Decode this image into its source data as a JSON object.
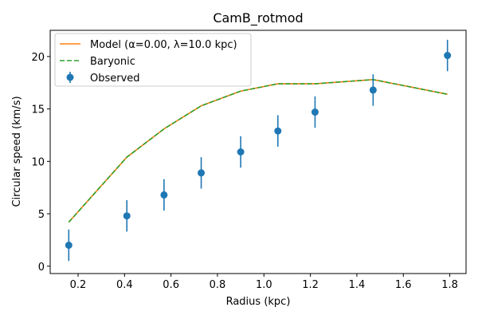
{
  "chart_data": {
    "type": "line",
    "title": "CamB_rotmod",
    "xlabel": "Radius (kpc)",
    "ylabel": "Circular speed (km/s)",
    "xlim": [
      0.08,
      1.87
    ],
    "ylim": [
      -0.7,
      22.5
    ],
    "xticks": [
      "0.2",
      "0.4",
      "0.6",
      "0.8",
      "1.0",
      "1.2",
      "1.4",
      "1.6",
      "1.8"
    ],
    "yticks": [
      "0",
      "5",
      "10",
      "15",
      "20"
    ],
    "legend_position": "upper-left",
    "grid": false,
    "series": [
      {
        "name": "Model (α=0.00, λ=10.0 kpc)",
        "kind": "line",
        "color": "#ff7f0e",
        "x": [
          0.16,
          0.41,
          0.57,
          0.73,
          0.9,
          1.06,
          1.22,
          1.47,
          1.79
        ],
        "y": [
          4.2,
          10.4,
          13.1,
          15.3,
          16.7,
          17.4,
          17.4,
          17.8,
          16.4
        ]
      },
      {
        "name": "Baryonic",
        "kind": "dashed-line",
        "color": "#2ca02c",
        "x": [
          0.16,
          0.41,
          0.57,
          0.73,
          0.9,
          1.06,
          1.22,
          1.47,
          1.79
        ],
        "y": [
          4.2,
          10.4,
          13.1,
          15.3,
          16.7,
          17.4,
          17.4,
          17.8,
          16.4
        ]
      },
      {
        "name": "Observed",
        "kind": "errorbar",
        "color": "#1f77b4",
        "x": [
          0.16,
          0.41,
          0.57,
          0.73,
          0.9,
          1.06,
          1.22,
          1.47,
          1.79
        ],
        "y": [
          2.0,
          4.8,
          6.8,
          8.9,
          10.9,
          12.9,
          14.7,
          16.8,
          20.1
        ],
        "yerr": [
          1.5,
          1.5,
          1.5,
          1.5,
          1.5,
          1.5,
          1.5,
          1.5,
          1.5
        ]
      }
    ]
  }
}
